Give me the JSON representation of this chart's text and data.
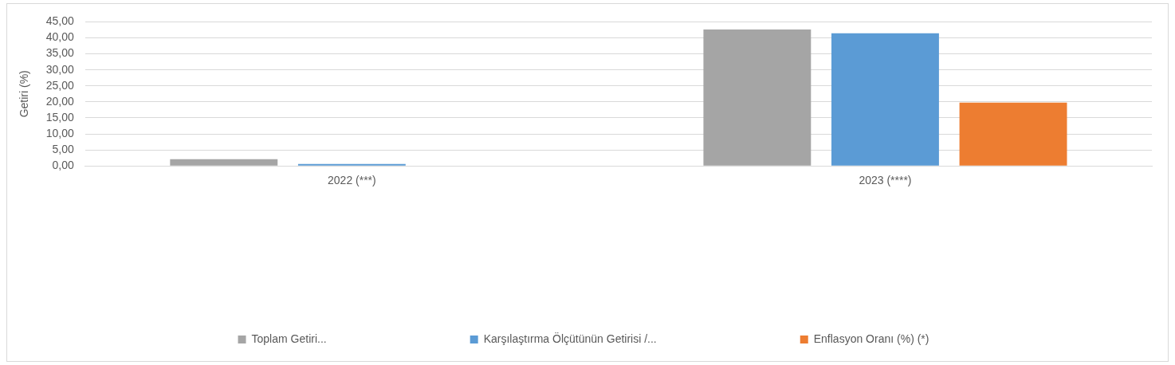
{
  "chart_data": {
    "type": "bar",
    "ylabel": "Getiri (%)",
    "categories": [
      "2022 (***)",
      "2023 (****)"
    ],
    "series": [
      {
        "name": "Toplam Getiri...",
        "color": "#a5a5a5",
        "values": [
          2.1,
          42.6
        ]
      },
      {
        "name": "Karşılaştırma Ölçütünün Getirisi /...",
        "color": "#5b9bd5",
        "values": [
          0.6,
          41.4
        ]
      },
      {
        "name": "Enflasyon Oranı (%) (*)",
        "color": "#ed7d31",
        "values": [
          null,
          19.8
        ]
      }
    ],
    "ylim": [
      0,
      45
    ],
    "yticks": [
      {
        "value": 0,
        "label": "0,00"
      },
      {
        "value": 5,
        "label": "5,00"
      },
      {
        "value": 10,
        "label": "10,00"
      },
      {
        "value": 15,
        "label": "15,00"
      },
      {
        "value": 20,
        "label": "20,00"
      },
      {
        "value": 25,
        "label": "25,00"
      },
      {
        "value": 30,
        "label": "30,00"
      },
      {
        "value": 35,
        "label": "35,00"
      },
      {
        "value": 40,
        "label": "40,00"
      },
      {
        "value": 45,
        "label": "45,00"
      }
    ],
    "grid": "y",
    "legend": "bottom"
  }
}
